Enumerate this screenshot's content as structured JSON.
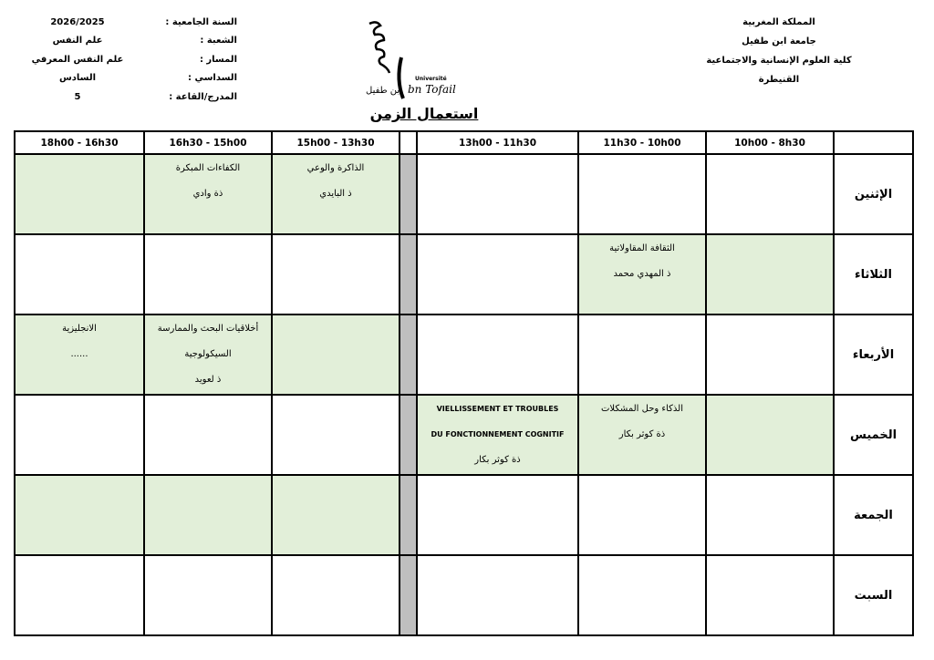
{
  "header_left": [
    {
      "label": "السنة الجامعية :",
      "value": "2026/2025"
    },
    {
      "label": "الشعبة :",
      "value": "علم النفس"
    },
    {
      "label": "المسار :",
      "value": "علم النفس المعرفي"
    },
    {
      "label": "السداسي :",
      "value": "السادس"
    },
    {
      "label": "المدرج/القاعة :",
      "value": "5"
    }
  ],
  "header_right": [
    "المملكة المغربية",
    "جامعة ابن طفيل",
    "كلية العلوم الإنسانية والاجتماعية",
    "القنيطرة"
  ],
  "logo": {
    "text_latin": "Université Ibn Tofail",
    "text_arabic": "جامعة ابن طفيل"
  },
  "title": "استعمال الزمن",
  "colors": {
    "scheduled_cell": "#e2efd9",
    "break_column": "#bfbfbf"
  },
  "columns": [
    "18h00 - 16h30",
    "16h30 - 15h00",
    "15h00 - 13h30",
    "",
    "13h00 - 11h30",
    "11h30 - 10h00",
    "10h00 - 8h30",
    ""
  ],
  "rows": [
    {
      "day": "الإثنين",
      "cells": [
        {
          "green": true,
          "lines": []
        },
        {
          "green": true,
          "lines": [
            "الكفاءات المبكرة",
            "ذة وادي"
          ]
        },
        {
          "green": true,
          "lines": [
            "الذاكرة والوعي",
            "ذ البايدي"
          ]
        },
        {
          "green": false,
          "lines": []
        },
        {
          "green": false,
          "lines": []
        },
        {
          "green": false,
          "lines": []
        }
      ]
    },
    {
      "day": "الثلاثاء",
      "cells": [
        {
          "green": false,
          "lines": []
        },
        {
          "green": false,
          "lines": []
        },
        {
          "green": false,
          "lines": []
        },
        {
          "green": false,
          "lines": []
        },
        {
          "green": true,
          "lines": [
            "الثقافة المقاولاتية",
            "ذ المهدي محمد"
          ]
        },
        {
          "green": true,
          "lines": []
        }
      ]
    },
    {
      "day": "الأربعاء",
      "cells": [
        {
          "green": true,
          "lines": [
            "الانجليزية",
            "......"
          ]
        },
        {
          "green": true,
          "lines": [
            "أخلاقيات البحث والممارسة",
            "السيكولوجية",
            "ذ لعويد"
          ]
        },
        {
          "green": true,
          "lines": []
        },
        {
          "green": false,
          "lines": []
        },
        {
          "green": false,
          "lines": []
        },
        {
          "green": false,
          "lines": []
        }
      ]
    },
    {
      "day": "الخميس",
      "cells": [
        {
          "green": false,
          "lines": []
        },
        {
          "green": false,
          "lines": []
        },
        {
          "green": false,
          "lines": []
        },
        {
          "green": true,
          "latin": true,
          "lines": [
            "VIELLISSEMENT ET TROUBLES",
            "DU FONCTIONNEMENT COGNITIF",
            "ذة كوثر بكار"
          ]
        },
        {
          "green": true,
          "lines": [
            "الذكاء وحل المشكلات",
            "ذة كوثر بكار"
          ]
        },
        {
          "green": true,
          "lines": []
        }
      ]
    },
    {
      "day": "الجمعة",
      "cells": [
        {
          "green": true,
          "lines": []
        },
        {
          "green": true,
          "lines": []
        },
        {
          "green": true,
          "lines": []
        },
        {
          "green": false,
          "lines": []
        },
        {
          "green": false,
          "lines": []
        },
        {
          "green": false,
          "lines": []
        }
      ]
    },
    {
      "day": "السبت",
      "cells": [
        {
          "green": false,
          "lines": []
        },
        {
          "green": false,
          "lines": []
        },
        {
          "green": false,
          "lines": []
        },
        {
          "green": false,
          "lines": []
        },
        {
          "green": false,
          "lines": []
        },
        {
          "green": false,
          "lines": []
        }
      ]
    }
  ]
}
